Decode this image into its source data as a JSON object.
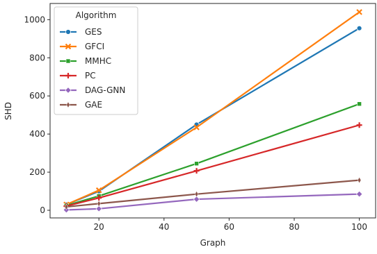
{
  "chart_data": {
    "type": "line",
    "xlabel": "Graph",
    "ylabel": "SHD",
    "xlim": [
      5,
      105
    ],
    "ylim": [
      -40,
      1085
    ],
    "xticks": [
      20,
      40,
      60,
      80,
      100
    ],
    "yticks": [
      0,
      200,
      400,
      600,
      800,
      1000
    ],
    "grid": false,
    "legend": {
      "title": "Algorithm",
      "position": "top-left"
    },
    "x": [
      10,
      20,
      50,
      100
    ],
    "series": [
      {
        "name": "GES",
        "color": "#1f77b4",
        "marker": "circle",
        "values": [
          30,
          100,
          450,
          955
        ]
      },
      {
        "name": "GFCI",
        "color": "#ff7f0e",
        "marker": "x",
        "values": [
          30,
          105,
          435,
          1040
        ]
      },
      {
        "name": "MMHC",
        "color": "#2ca02c",
        "marker": "square",
        "values": [
          25,
          75,
          245,
          558
        ]
      },
      {
        "name": "PC",
        "color": "#d62728",
        "marker": "plus",
        "values": [
          22,
          65,
          207,
          447
        ]
      },
      {
        "name": "DAG-GNN",
        "color": "#9467bd",
        "marker": "diamond",
        "values": [
          2,
          8,
          58,
          85
        ]
      },
      {
        "name": "GAE",
        "color": "#8c564b",
        "marker": "thin-diamond",
        "values": [
          18,
          35,
          85,
          158
        ]
      }
    ]
  }
}
